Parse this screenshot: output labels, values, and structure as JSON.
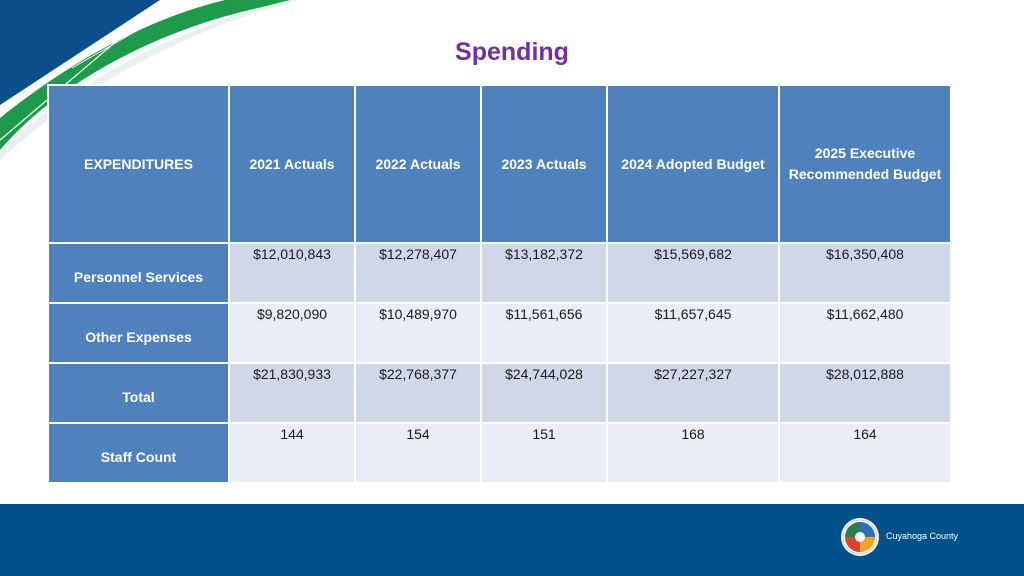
{
  "colors": {
    "title": "#7030a0",
    "header_bg": "#4f81bd",
    "row_odd": "#d0d8e8",
    "row_even": "#e9edf4",
    "footer": "#00508a",
    "deco_green": "#1f9a4a"
  },
  "title": "Spending",
  "table": {
    "headers": [
      "EXPENDITURES",
      "2021 Actuals",
      "2022 Actuals",
      "2023  Actuals",
      "2024 Adopted Budget",
      "2025 Executive Recommended Budget"
    ],
    "rows": [
      {
        "label": "Personnel Services",
        "values": [
          "$12,010,843",
          "$12,278,407",
          "$13,182,372",
          "$15,569,682",
          "$16,350,408"
        ]
      },
      {
        "label": "Other Expenses",
        "values": [
          "$9,820,090",
          "$10,489,970",
          "$11,561,656",
          "$11,657,645",
          "$11,662,480"
        ]
      },
      {
        "label": "Total",
        "values": [
          "$21,830,933",
          "$22,768,377",
          "$24,744,028",
          "$27,227,327",
          "$28,012,888"
        ]
      },
      {
        "label": "Staff Count",
        "values": [
          "144",
          "154",
          "151",
          "168",
          "164"
        ]
      }
    ]
  },
  "footer": {
    "org_name": "Cuyahoga County",
    "logo_icon": "county-seal-icon"
  }
}
